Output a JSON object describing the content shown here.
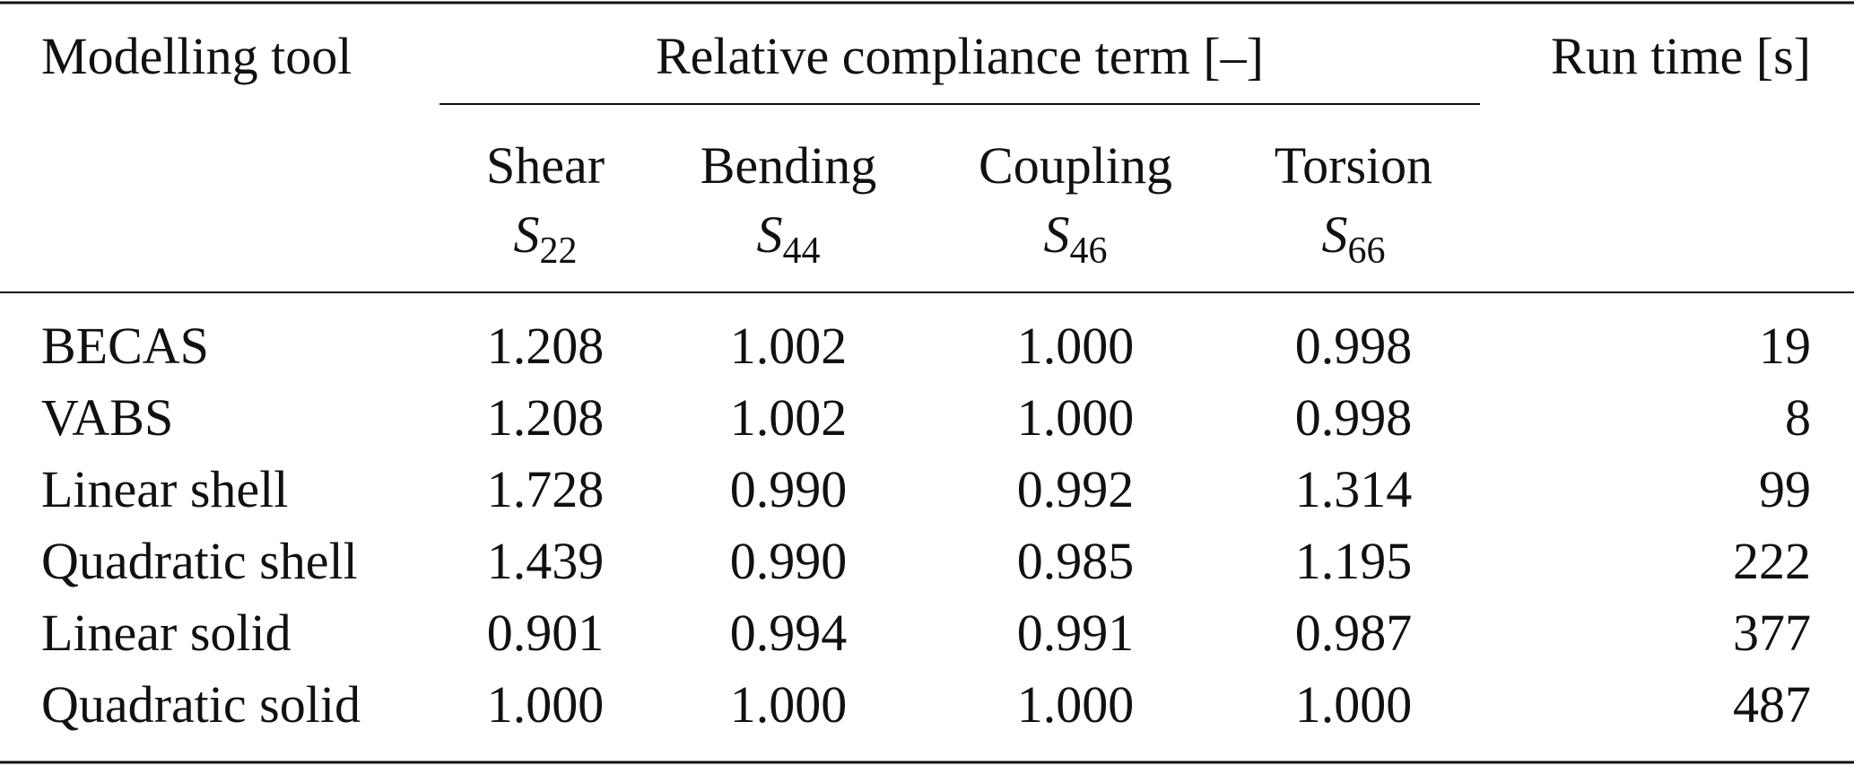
{
  "table": {
    "header": {
      "first": "Modelling tool",
      "group": "Relative compliance term [–]",
      "last": "Run time [s]"
    },
    "subheaders": [
      {
        "name": "Shear",
        "symbol": "S",
        "sub": "22"
      },
      {
        "name": "Bending",
        "symbol": "S",
        "sub": "44"
      },
      {
        "name": "Coupling",
        "symbol": "S",
        "sub": "46"
      },
      {
        "name": "Torsion",
        "symbol": "S",
        "sub": "66"
      }
    ],
    "rows": [
      [
        "BECAS",
        "1.208",
        "1.002",
        "1.000",
        "0.998",
        "19"
      ],
      [
        "VABS",
        "1.208",
        "1.002",
        "1.000",
        "0.998",
        "8"
      ],
      [
        "Linear shell",
        "1.728",
        "0.990",
        "0.992",
        "1.314",
        "99"
      ],
      [
        "Quadratic shell",
        "1.439",
        "0.990",
        "0.985",
        "1.195",
        "222"
      ],
      [
        "Linear solid",
        "0.901",
        "0.994",
        "0.991",
        "0.987",
        "377"
      ],
      [
        "Quadratic solid",
        "1.000",
        "1.000",
        "1.000",
        "1.000",
        "487"
      ]
    ]
  }
}
